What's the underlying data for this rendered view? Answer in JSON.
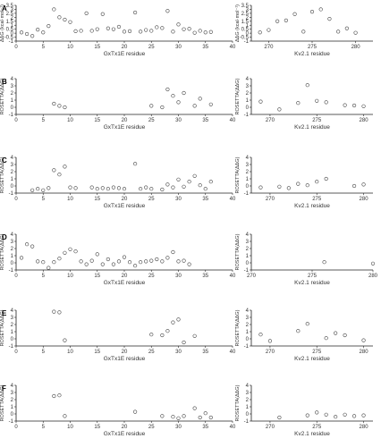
{
  "chart_data": [
    {
      "type": "scatter",
      "panel": "A",
      "xlabel": "GxTx1E residue",
      "ylabel": "ΔΔG (kcal·mol⁻¹)",
      "xlim": [
        0,
        40
      ],
      "ylim": [
        -1,
        3.5
      ],
      "xticks": [
        0,
        5,
        10,
        15,
        20,
        25,
        30,
        35,
        40
      ],
      "yticks": [
        -1,
        -0.5,
        0,
        0.5,
        1,
        1.5,
        2,
        2.5,
        3,
        3.5
      ],
      "x": [
        1,
        2,
        3,
        4,
        5,
        6,
        7,
        8,
        9,
        10,
        11,
        12,
        13,
        14,
        15,
        16,
        17,
        18,
        19,
        20,
        21,
        22,
        23,
        24,
        25,
        26,
        27,
        28,
        29,
        30,
        31,
        32,
        33,
        34,
        35,
        36
      ],
      "y": [
        0.1,
        -0.1,
        -0.35,
        0.45,
        0.1,
        0.9,
        3,
        2,
        1.7,
        1.4,
        0.25,
        0.3,
        2.5,
        0.3,
        0.5,
        2.4,
        0.6,
        0.5,
        0.8,
        0.2,
        0.25,
        2.6,
        0.2,
        0.4,
        0.3,
        0.75,
        0.65,
        2.8,
        0.2,
        1.1,
        0.5,
        0.55,
        0.05,
        0.3,
        0.1,
        0.15
      ]
    },
    {
      "type": "scatter",
      "panel": "A",
      "xlabel": "Kv2.1 residue",
      "ylabel": "ΔΔG (kcal·mol⁻¹)",
      "xlim": [
        268,
        282
      ],
      "ylim": [
        -1,
        3.5
      ],
      "xticks": [
        270,
        275,
        280
      ],
      "yticks": [
        -1,
        -0.5,
        0,
        0.5,
        1,
        1.5,
        2,
        2.5,
        3,
        3.5
      ],
      "x": [
        269,
        270,
        271,
        272,
        273,
        274,
        275,
        276,
        277,
        278,
        279,
        280
      ],
      "y": [
        0.1,
        0.4,
        1.5,
        1.6,
        2.4,
        0.2,
        2.7,
        3.0,
        1.8,
        0.2,
        0.6,
        0.05
      ]
    },
    {
      "type": "scatter",
      "panel": "B",
      "xlabel": "GxTx1E residue",
      "ylabel": "ROSETTA(ΔΔG)",
      "xlim": [
        0,
        40
      ],
      "ylim": [
        -1,
        4
      ],
      "xticks": [
        0,
        5,
        10,
        15,
        20,
        25,
        30,
        35,
        40
      ],
      "yticks": [
        -1,
        0,
        1,
        2,
        3,
        4
      ],
      "x": [
        7,
        8,
        9,
        25,
        27,
        28,
        29,
        30,
        31,
        33,
        34,
        36
      ],
      "y": [
        0.5,
        0.2,
        0,
        0.2,
        0,
        2.5,
        1.6,
        0.7,
        2,
        0.2,
        1.2,
        0.4
      ]
    },
    {
      "type": "scatter",
      "panel": "B",
      "xlabel": "Kv2.1 residue",
      "ylabel": "ROSETTA(ΔΔG)",
      "xlim": [
        268,
        281
      ],
      "ylim": [
        -1,
        4
      ],
      "xticks": [
        270,
        275,
        280
      ],
      "yticks": [
        -1,
        0,
        1,
        2,
        3,
        4
      ],
      "x": [
        269,
        271,
        273,
        274,
        275,
        276,
        278,
        279,
        280
      ],
      "y": [
        0.8,
        -0.3,
        0.6,
        3.1,
        0.9,
        0.7,
        0.3,
        0.25,
        0.15
      ]
    },
    {
      "type": "scatter",
      "panel": "C",
      "xlabel": "GxTx1E residue",
      "ylabel": "ROSETTA(ΔΔG)",
      "xlim": [
        0,
        40
      ],
      "ylim": [
        -1,
        4
      ],
      "xticks": [
        0,
        5,
        10,
        15,
        20,
        25,
        30,
        35,
        40
      ],
      "yticks": [
        -1,
        0,
        1,
        2,
        3,
        4
      ],
      "x": [
        3,
        4,
        5,
        6,
        7,
        8,
        9,
        10,
        11,
        14,
        15,
        16,
        17,
        18,
        19,
        20,
        22,
        23,
        24,
        25,
        27,
        28,
        29,
        30,
        31,
        32,
        33,
        34,
        35,
        36
      ],
      "y": [
        -0.6,
        -0.4,
        -0.6,
        -0.3,
        2.2,
        1.6,
        2.7,
        -0.2,
        -0.3,
        -0.2,
        -0.4,
        -0.3,
        -0.4,
        -0.2,
        -0.3,
        -0.4,
        3.1,
        -0.4,
        -0.2,
        -0.4,
        -0.5,
        0.2,
        -0.2,
        0.9,
        -0.1,
        0.6,
        1.4,
        0.1,
        -0.4,
        0.6
      ]
    },
    {
      "type": "scatter",
      "panel": "C",
      "xlabel": "Kv2.1 residue",
      "ylabel": "ROSETTA(ΔΔG)",
      "xlim": [
        268,
        281
      ],
      "ylim": [
        -1,
        4
      ],
      "xticks": [
        270,
        275,
        280
      ],
      "yticks": [
        -1,
        0,
        1,
        2,
        3,
        4
      ],
      "x": [
        269,
        271,
        272,
        273,
        274,
        275,
        276,
        279,
        280
      ],
      "y": [
        -0.2,
        -0.1,
        -0.3,
        0.3,
        0.1,
        0.6,
        1,
        0,
        0.2
      ]
    },
    {
      "type": "scatter",
      "panel": "D",
      "xlabel": "GxTx1E residue",
      "ylabel": "ROSETTA(ΔΔG)",
      "xlim": [
        0,
        40
      ],
      "ylim": [
        -1,
        4
      ],
      "xticks": [
        0,
        5,
        10,
        15,
        20,
        25,
        30,
        35,
        40
      ],
      "yticks": [
        -1,
        0,
        1,
        2,
        3,
        4
      ],
      "x": [
        1,
        2,
        3,
        4,
        5,
        6,
        7,
        8,
        9,
        10,
        11,
        12,
        13,
        14,
        15,
        16,
        17,
        18,
        19,
        20,
        21,
        22,
        23,
        24,
        25,
        26,
        27,
        28,
        29,
        30,
        31,
        32
      ],
      "y": [
        0.7,
        2.6,
        2.3,
        0.2,
        0.1,
        -0.7,
        0.1,
        0.6,
        1.4,
        1.9,
        1.6,
        0.2,
        -0.2,
        0.3,
        1.2,
        -0.2,
        0.5,
        -0.2,
        0.2,
        0.8,
        0.1,
        -0.4,
        0.1,
        0.2,
        0.3,
        0.5,
        0.2,
        0.7,
        1.5,
        0.2,
        0.3,
        -0.2
      ]
    },
    {
      "type": "scatter",
      "panel": "D",
      "xlabel": "Kv2.1 residue",
      "ylabel": "ROSETTA(ΔΔG)",
      "xlim": [
        270,
        280
      ],
      "ylim": [
        -1,
        4
      ],
      "xticks": [
        270,
        275,
        280
      ],
      "yticks": [
        -1,
        0,
        1,
        2,
        3,
        4
      ],
      "x": [
        276,
        280
      ],
      "y": [
        0.1,
        -0.1
      ]
    },
    {
      "type": "scatter",
      "panel": "E",
      "xlabel": "GxTx1E residue",
      "ylabel": "ROSETTA(ΔΔG)",
      "xlim": [
        0,
        40
      ],
      "ylim": [
        -1,
        4
      ],
      "xticks": [
        0,
        5,
        10,
        15,
        20,
        25,
        30,
        35,
        40
      ],
      "yticks": [
        -1,
        0,
        1,
        2,
        3,
        4
      ],
      "x": [
        7,
        8,
        9,
        25,
        27,
        28,
        29,
        30,
        31,
        33
      ],
      "y": [
        3.8,
        3.7,
        -0.2,
        0.6,
        0.5,
        1.1,
        2.3,
        2.7,
        -0.5,
        0.4
      ]
    },
    {
      "type": "scatter",
      "panel": "E",
      "xlabel": "Kv2.1 residue",
      "ylabel": "ROSETTA(ΔΔG)",
      "xlim": [
        268,
        281
      ],
      "ylim": [
        -1,
        4
      ],
      "xticks": [
        270,
        275,
        280
      ],
      "yticks": [
        -1,
        0,
        1,
        2,
        3,
        4
      ],
      "x": [
        269,
        270,
        273,
        274,
        276,
        277,
        278,
        280
      ],
      "y": [
        0.6,
        -0.3,
        1.1,
        2.1,
        0.1,
        0.8,
        0.5,
        -0.2
      ]
    },
    {
      "type": "scatter",
      "panel": "F",
      "xlabel": "GxTx1E residue",
      "ylabel": "ROSETTA(ΔΔG)",
      "xlim": [
        0,
        40
      ],
      "ylim": [
        -1,
        4
      ],
      "xticks": [
        0,
        5,
        10,
        15,
        20,
        25,
        30,
        35,
        40
      ],
      "yticks": [
        -1,
        0,
        1,
        2,
        3,
        4
      ],
      "x": [
        7,
        8,
        9,
        22,
        27,
        29,
        30,
        31,
        33,
        34,
        35,
        36
      ],
      "y": [
        2.5,
        2.6,
        -0.3,
        0.3,
        -0.3,
        -0.4,
        -0.6,
        -0.3,
        0.8,
        -0.5,
        0.1,
        -0.5
      ]
    },
    {
      "type": "scatter",
      "panel": "F",
      "xlabel": "Kv2.1 residue",
      "ylabel": "ROSETTA(ΔΔG)",
      "xlim": [
        268,
        281
      ],
      "ylim": [
        -1,
        4
      ],
      "xticks": [
        270,
        275,
        280
      ],
      "yticks": [
        -1,
        0,
        1,
        2,
        3,
        4
      ],
      "x": [
        271,
        274,
        275,
        276,
        277,
        278,
        279,
        280
      ],
      "y": [
        -0.5,
        -0.2,
        0.2,
        -0.1,
        -0.4,
        -0.1,
        -0.3,
        -0.2
      ]
    }
  ]
}
